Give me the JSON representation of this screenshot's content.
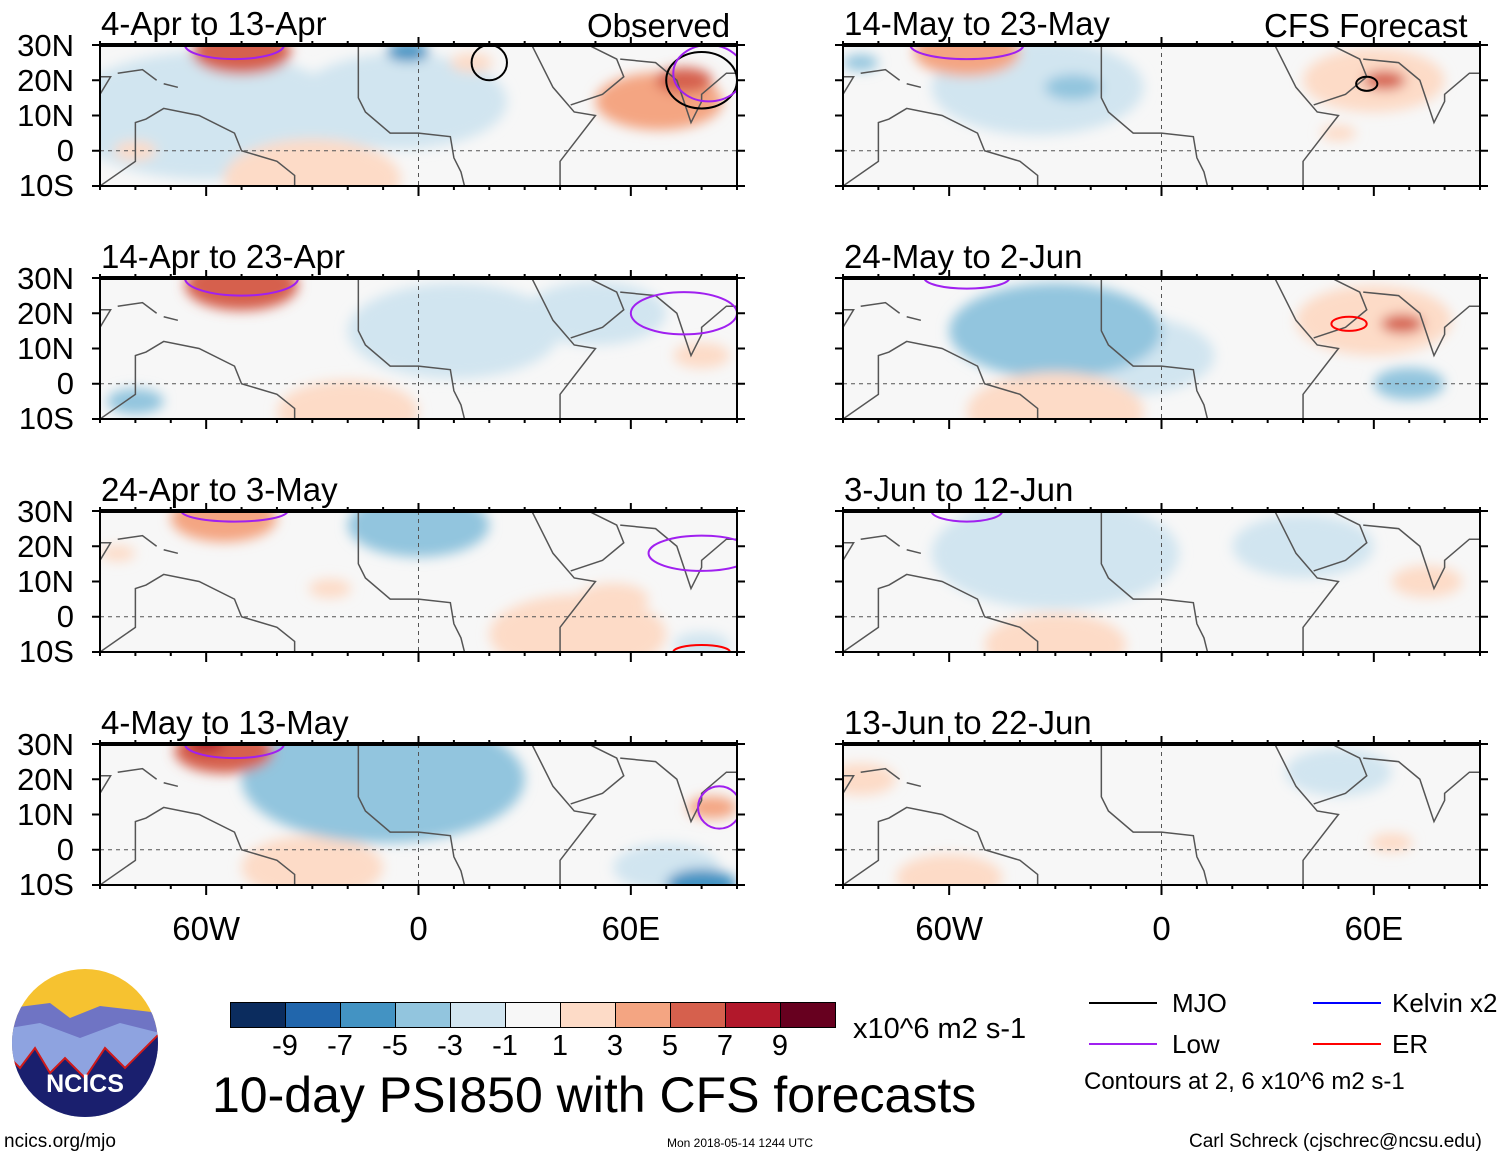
{
  "header": {
    "observed_label": "Observed",
    "forecast_label": "CFS Forecast"
  },
  "lat_labels": [
    "30N",
    "20N",
    "10N",
    "0",
    "10S"
  ],
  "lon_labels": [
    "60W",
    "0",
    "60E"
  ],
  "panels": [
    {
      "title": "4-Apr to 13-Apr",
      "col": 0,
      "row": 0,
      "anomalies": [
        [
          -50,
          28,
          14,
          6
        ],
        [
          -60,
          10,
          40,
          -1.5
        ],
        [
          -5,
          14,
          30,
          -1.5
        ],
        [
          -3,
          28,
          6,
          -5
        ],
        [
          15,
          25,
          6,
          2
        ],
        [
          68,
          14,
          18,
          4
        ],
        [
          75,
          20,
          8,
          6
        ],
        [
          -80,
          0,
          6,
          2
        ],
        [
          -30,
          -8,
          25,
          1.5
        ]
      ],
      "contours": [
        [
          -52,
          30,
          14,
          4,
          "low"
        ],
        [
          20,
          25,
          5,
          5,
          "mjo"
        ],
        [
          80,
          20,
          10,
          8,
          "mjo"
        ],
        [
          82,
          22,
          10,
          8,
          "low"
        ]
      ]
    },
    {
      "title": "14-Apr to 23-Apr",
      "col": 0,
      "row": 1,
      "anomalies": [
        [
          -50,
          28,
          16,
          6
        ],
        [
          -50,
          27,
          10,
          7
        ],
        [
          10,
          15,
          30,
          -1.5
        ],
        [
          -20,
          -8,
          20,
          2
        ],
        [
          80,
          8,
          8,
          2
        ],
        [
          -80,
          -5,
          8,
          -3
        ],
        [
          50,
          20,
          20,
          -1.5
        ]
      ],
      "contours": [
        [
          -50,
          30,
          16,
          5,
          "low"
        ],
        [
          75,
          20,
          15,
          6,
          "low"
        ]
      ]
    },
    {
      "title": "24-Apr to 3-May",
      "col": 0,
      "row": 2,
      "anomalies": [
        [
          -55,
          28,
          15,
          4
        ],
        [
          0,
          26,
          20,
          -3
        ],
        [
          -25,
          8,
          6,
          2
        ],
        [
          55,
          5,
          10,
          2
        ],
        [
          45,
          -5,
          25,
          2
        ],
        [
          -85,
          18,
          5,
          2
        ],
        [
          80,
          -8,
          8,
          -1.5
        ]
      ],
      "contours": [
        [
          -52,
          30,
          15,
          3,
          "low"
        ],
        [
          80,
          18,
          15,
          5,
          "low"
        ],
        [
          80,
          -10,
          8,
          2,
          "er"
        ]
      ]
    },
    {
      "title": "4-May to 13-May",
      "col": 0,
      "row": 3,
      "anomalies": [
        [
          -55,
          28,
          14,
          6
        ],
        [
          -60,
          30,
          5,
          8
        ],
        [
          -10,
          20,
          40,
          -3
        ],
        [
          83,
          12,
          7,
          4
        ],
        [
          -30,
          -5,
          20,
          2
        ],
        [
          80,
          -10,
          10,
          -6
        ],
        [
          70,
          -5,
          15,
          -2
        ]
      ],
      "contours": [
        [
          -52,
          30,
          14,
          4,
          "low"
        ],
        [
          85,
          12,
          6,
          6,
          "low"
        ]
      ]
    },
    {
      "title": "14-May to 23-May",
      "col": 1,
      "row": 0,
      "anomalies": [
        [
          -55,
          28,
          15,
          5
        ],
        [
          -35,
          18,
          30,
          -1.5
        ],
        [
          -25,
          18,
          8,
          -3
        ],
        [
          60,
          20,
          20,
          3
        ],
        [
          63,
          20,
          6,
          6
        ],
        [
          50,
          5,
          5,
          2
        ],
        [
          -85,
          25,
          5,
          -3
        ]
      ],
      "contours": [
        [
          -55,
          30,
          16,
          4,
          "low"
        ],
        [
          58,
          19,
          3,
          2,
          "mjo"
        ]
      ]
    },
    {
      "title": "24-May to 2-Jun",
      "col": 1,
      "row": 1,
      "anomalies": [
        [
          -30,
          15,
          30,
          -3
        ],
        [
          -40,
          18,
          10,
          -4
        ],
        [
          60,
          18,
          22,
          3
        ],
        [
          68,
          17,
          6,
          6
        ],
        [
          -30,
          -8,
          25,
          3
        ],
        [
          70,
          0,
          10,
          -3
        ],
        [
          -10,
          8,
          25,
          -1.5
        ]
      ],
      "contours": [
        [
          -55,
          30,
          12,
          3,
          "low"
        ],
        [
          53,
          17,
          5,
          2,
          "er"
        ]
      ]
    },
    {
      "title": "3-Jun to 12-Jun",
      "col": 1,
      "row": 2,
      "anomalies": [
        [
          -30,
          18,
          35,
          -1.5
        ],
        [
          -30,
          -8,
          20,
          2
        ],
        [
          75,
          10,
          10,
          2
        ],
        [
          40,
          20,
          20,
          -1.5
        ]
      ],
      "contours": [
        [
          -55,
          30,
          10,
          3,
          "low"
        ]
      ]
    },
    {
      "title": "13-Jun to 22-Jun",
      "col": 1,
      "row": 3,
      "anomalies": [
        [
          -85,
          20,
          10,
          3
        ],
        [
          -60,
          -8,
          15,
          2
        ],
        [
          65,
          2,
          6,
          2
        ],
        [
          50,
          22,
          15,
          -1.5
        ]
      ],
      "contours": []
    }
  ],
  "colorbar": {
    "colors": [
      "#0b2c5e",
      "#2166ac",
      "#4393c3",
      "#92c5de",
      "#d1e5f0",
      "#f7f7f7",
      "#fddbc7",
      "#f4a582",
      "#d6604d",
      "#b2182b",
      "#67001f"
    ],
    "labels": [
      "-9",
      "-7",
      "-5",
      "-3",
      "-1",
      "1",
      "3",
      "5",
      "7",
      "9"
    ],
    "units": "x10^6 m2 s-1"
  },
  "title": "10-day PSI850 with CFS forecasts",
  "legend": {
    "items": [
      {
        "label": "MJO",
        "color": "#000000"
      },
      {
        "label": "Kelvin x2",
        "color": "#0000ff"
      },
      {
        "label": "Low",
        "color": "#a020f0"
      },
      {
        "label": "ER",
        "color": "#ff0000"
      }
    ],
    "note": "Contours at 2, 6 x10^6 m2 s-1"
  },
  "logo": {
    "text": "NCICS"
  },
  "footer": {
    "left": "ncics.org/mjo",
    "center": "Mon 2018-05-14 1244 UTC",
    "right": "Carl Schreck (cjschrec@ncsu.edu)"
  }
}
